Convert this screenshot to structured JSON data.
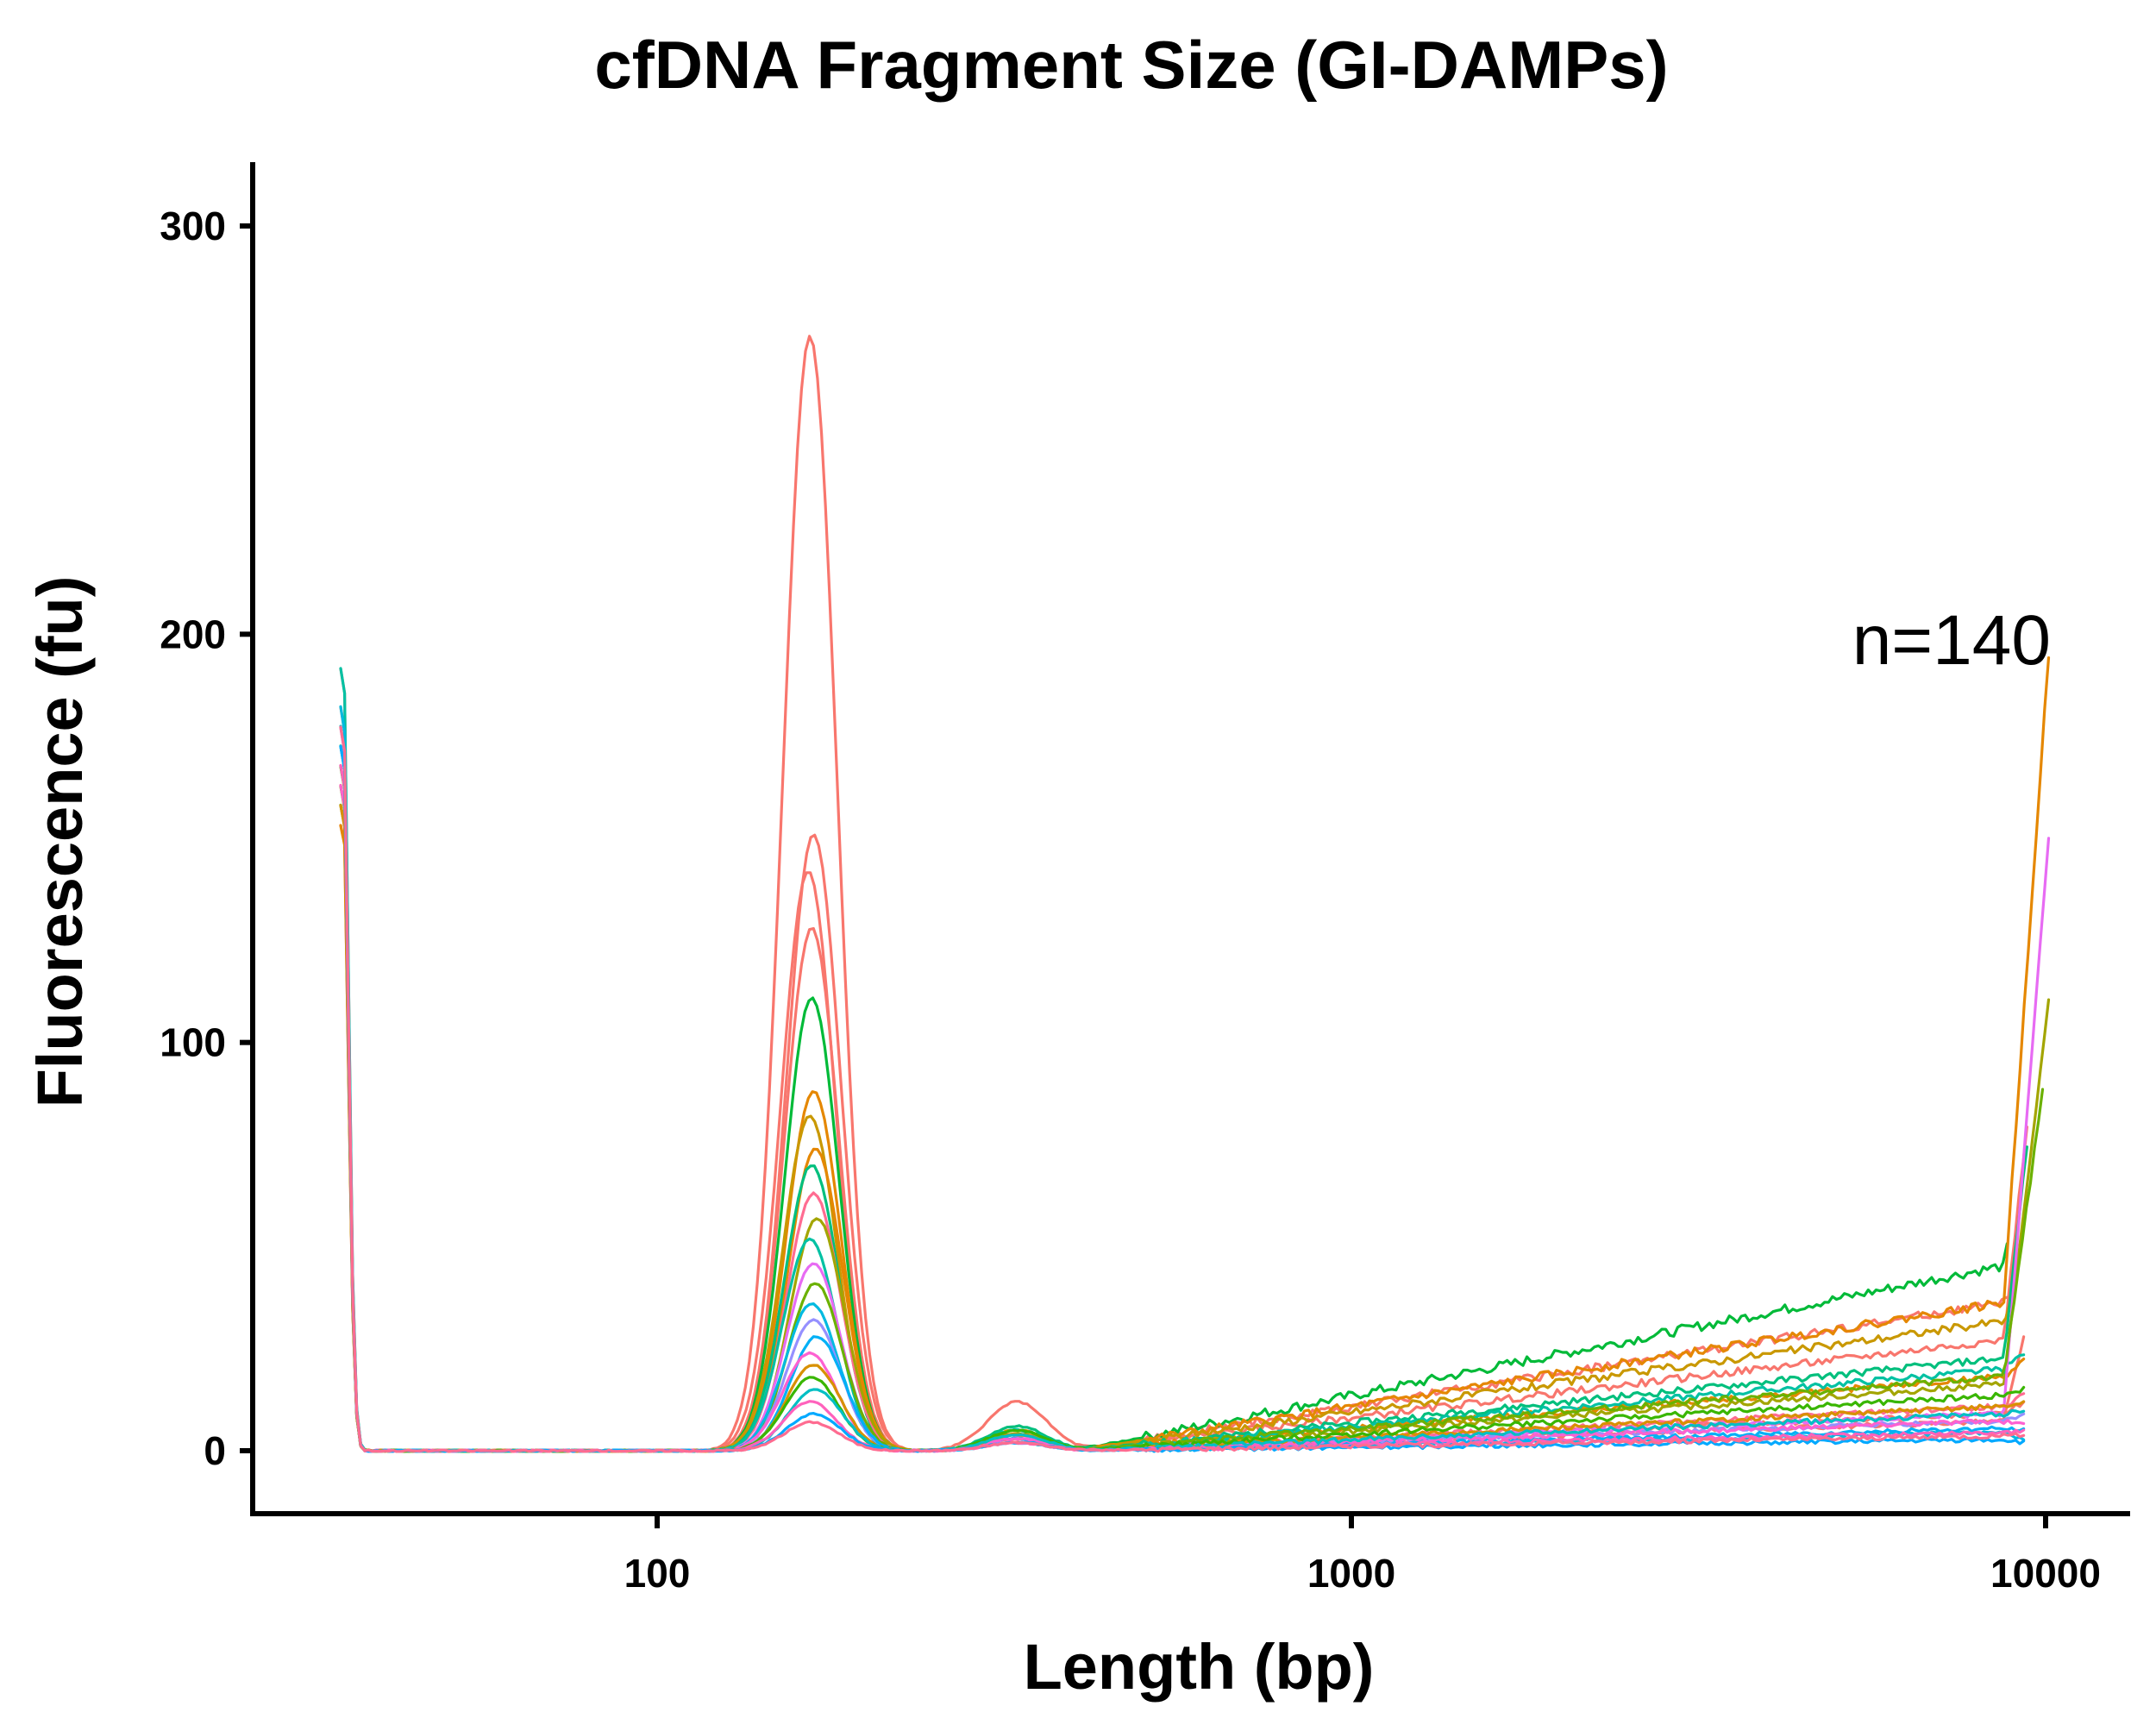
{
  "chart_data": {
    "type": "line",
    "title": "cfDNA Fragment Size (GI-DAMPs)",
    "xlabel": "Length (bp)",
    "ylabel": "Fluorescence (fu)",
    "x_scale": "log",
    "xlim": [
      28,
      13000
    ],
    "ylim": [
      -15,
      315
    ],
    "x_ticks": [
      100,
      1000,
      10000
    ],
    "x_tick_labels": [
      "100",
      "1000",
      "10000"
    ],
    "y_ticks": [
      0,
      100,
      200,
      300
    ],
    "y_tick_labels": [
      "0",
      "100",
      "200",
      "300"
    ],
    "annotation": "n=140",
    "grid": false,
    "legend": "none",
    "n_traces": 140,
    "series": [
      {
        "color": "#F8766D",
        "peak_bp": 166,
        "peak_fu": 273,
        "lowmark_fu": 200,
        "mid_fu": 2,
        "tail_fu": 8,
        "end_bp": 9300,
        "end_fu": 28
      },
      {
        "color": "#F8766D",
        "peak_bp": 168,
        "peak_fu": 151,
        "lowmark_fu": 160,
        "mid_fu": 3,
        "tail_fu": 40,
        "end_bp": 9000,
        "end_fu": 40
      },
      {
        "color": "#F8766D",
        "peak_bp": 165,
        "peak_fu": 142,
        "lowmark_fu": 175,
        "mid_fu": 12,
        "tail_fu": 30,
        "end_bp": 9400,
        "end_fu": 80
      },
      {
        "color": "#F8766D",
        "peak_bp": 167,
        "peak_fu": 128,
        "lowmark_fu": 190,
        "mid_fu": 4,
        "tail_fu": 10,
        "end_bp": 9300,
        "end_fu": 12
      },
      {
        "color": "#00BA38",
        "peak_bp": 167,
        "peak_fu": 111,
        "lowmark_fu": 165,
        "mid_fu": 5,
        "tail_fu": 50,
        "end_bp": 8800,
        "end_fu": 50
      },
      {
        "color": "#E58700",
        "peak_bp": 168,
        "peak_fu": 88,
        "lowmark_fu": 185,
        "mid_fu": 3,
        "tail_fu": 40,
        "end_bp": 10100,
        "end_fu": 195
      },
      {
        "color": "#C99800",
        "peak_bp": 166,
        "peak_fu": 82,
        "lowmark_fu": 170,
        "mid_fu": 4,
        "tail_fu": 35,
        "end_bp": 9000,
        "end_fu": 38
      },
      {
        "color": "#E58700",
        "peak_bp": 169,
        "peak_fu": 74,
        "lowmark_fu": 160,
        "mid_fu": 5,
        "tail_fu": 20,
        "end_bp": 9300,
        "end_fu": 22
      },
      {
        "color": "#00BF7D",
        "peak_bp": 167,
        "peak_fu": 70,
        "lowmark_fu": 180,
        "mid_fu": 6,
        "tail_fu": 25,
        "end_bp": 9400,
        "end_fu": 75
      },
      {
        "color": "#FF6C91",
        "peak_bp": 168,
        "peak_fu": 63,
        "lowmark_fu": 170,
        "mid_fu": 3,
        "tail_fu": 12,
        "end_bp": 9300,
        "end_fu": 14
      },
      {
        "color": "#A3A500",
        "peak_bp": 170,
        "peak_fu": 57,
        "lowmark_fu": 165,
        "mid_fu": 4,
        "tail_fu": 18,
        "end_bp": 10100,
        "end_fu": 110
      },
      {
        "color": "#00C1A3",
        "peak_bp": 166,
        "peak_fu": 52,
        "lowmark_fu": 200,
        "mid_fu": 5,
        "tail_fu": 22,
        "end_bp": 9300,
        "end_fu": 24
      },
      {
        "color": "#E76BF3",
        "peak_bp": 168,
        "peak_fu": 46,
        "lowmark_fu": 185,
        "mid_fu": 3,
        "tail_fu": 10,
        "end_bp": 10100,
        "end_fu": 150
      },
      {
        "color": "#6BB100",
        "peak_bp": 169,
        "peak_fu": 41,
        "lowmark_fu": 170,
        "mid_fu": 4,
        "tail_fu": 20,
        "end_bp": 9900,
        "end_fu": 88
      },
      {
        "color": "#00BAE0",
        "peak_bp": 167,
        "peak_fu": 36,
        "lowmark_fu": 190,
        "mid_fu": 2,
        "tail_fu": 5,
        "end_bp": 9300,
        "end_fu": 3
      },
      {
        "color": "#9590FF",
        "peak_bp": 168,
        "peak_fu": 32,
        "lowmark_fu": 175,
        "mid_fu": 2,
        "tail_fu": 8,
        "end_bp": 9300,
        "end_fu": 9
      },
      {
        "color": "#00B0F6",
        "peak_bp": 170,
        "peak_fu": 28,
        "lowmark_fu": 180,
        "mid_fu": 3,
        "tail_fu": 6,
        "end_bp": 9300,
        "end_fu": 5
      },
      {
        "color": "#FD61D1",
        "peak_bp": 166,
        "peak_fu": 24,
        "lowmark_fu": 170,
        "mid_fu": 3,
        "tail_fu": 8,
        "end_bp": 9300,
        "end_fu": 7
      },
      {
        "color": "#D89000",
        "peak_bp": 168,
        "peak_fu": 21,
        "lowmark_fu": 165,
        "mid_fu": 4,
        "tail_fu": 12,
        "end_bp": 9300,
        "end_fu": 12
      },
      {
        "color": "#39B600",
        "peak_bp": 167,
        "peak_fu": 18,
        "lowmark_fu": 175,
        "mid_fu": 5,
        "tail_fu": 15,
        "end_bp": 9300,
        "end_fu": 15
      },
      {
        "color": "#00BFC4",
        "peak_bp": 169,
        "peak_fu": 15,
        "lowmark_fu": 185,
        "mid_fu": 4,
        "tail_fu": 10,
        "end_bp": 9300,
        "end_fu": 10
      },
      {
        "color": "#FF62BC",
        "peak_bp": 166,
        "peak_fu": 12,
        "lowmark_fu": 175,
        "mid_fu": 2,
        "tail_fu": 5,
        "end_bp": 9300,
        "end_fu": 5
      },
      {
        "color": "#00A9FF",
        "peak_bp": 168,
        "peak_fu": 9,
        "lowmark_fu": 180,
        "mid_fu": 2,
        "tail_fu": 3,
        "end_bp": 9300,
        "end_fu": 2
      },
      {
        "color": "#FF6C91",
        "peak_bp": 167,
        "peak_fu": 7,
        "lowmark_fu": 185,
        "mid_fu": 2,
        "tail_fu": 4,
        "end_bp": 9300,
        "end_fu": 4
      }
    ]
  }
}
